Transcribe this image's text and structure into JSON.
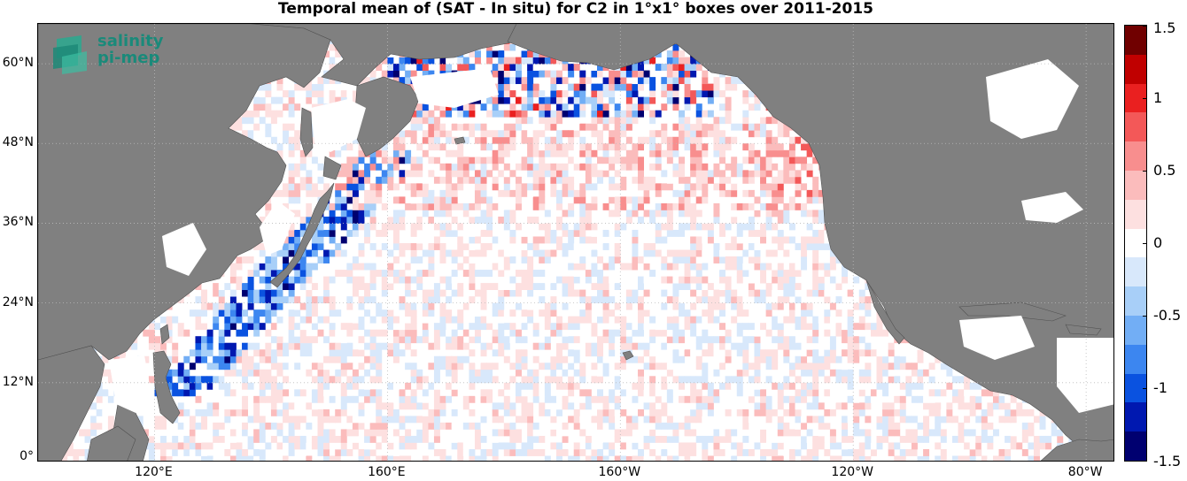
{
  "title": "Temporal mean of (SAT - In situ) for C2 in 1°x1° boxes over 2011-2015",
  "logo": {
    "line1": "salinity",
    "line2": "pi-mep",
    "color": "#1a8a7a"
  },
  "chart_data": {
    "type": "heatmap",
    "title": "Temporal mean of (SAT - In situ) for C2 in 1°x1° boxes over 2011-2015",
    "lon_range": [
      100,
      285
    ],
    "lat_range": [
      0,
      66
    ],
    "x_ticks": [
      "120°E",
      "160°E",
      "160°W",
      "120°W",
      "80°W"
    ],
    "y_ticks": [
      "0°",
      "12°N",
      "24°N",
      "36°N",
      "48°N",
      "60°N"
    ],
    "colorbar": {
      "ticks": [
        "1.5",
        "1",
        "0.5",
        "0",
        "-0.5",
        "-1",
        "-1.5"
      ],
      "range": [
        -1.5,
        1.5
      ],
      "colors": [
        "#000070",
        "#0018b0",
        "#0a52e0",
        "#3c86f0",
        "#72aef5",
        "#a8cff8",
        "#d8e8fb",
        "#ffffff",
        "#fde0e0",
        "#fbbcbc",
        "#f88e8e",
        "#f35858",
        "#ea2020",
        "#c00000",
        "#700000"
      ]
    },
    "grid": "dotted",
    "land_color": "#808080",
    "cell_size_deg": 1,
    "patterns": {
      "kuroshio_edge": "strong negative (blue) along Japan / East Asia coast",
      "gulf_of_alaska": "mixed strong blue and red cells",
      "interior": "weak positive (light red) and weak negative (light blue) scatter"
    }
  }
}
